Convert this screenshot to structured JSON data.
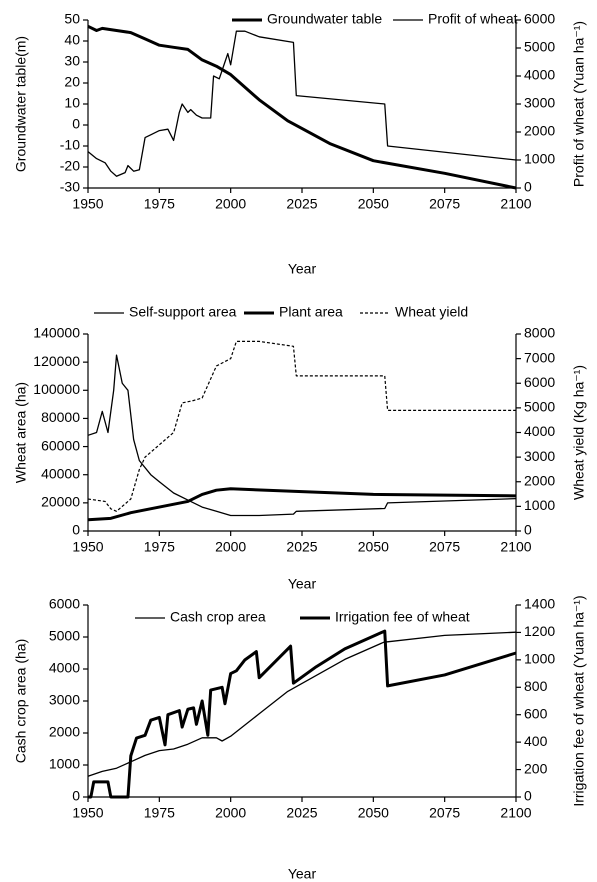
{
  "chart_data": [
    {
      "type": "line",
      "x_label": "Year",
      "y_label": "Groundwater table(m)",
      "y2_label": "Profit of wheat (Yuan ha⁻¹)",
      "legend": "top",
      "xlim": [
        1950,
        2100
      ],
      "xticks": [
        1950,
        1975,
        2000,
        2025,
        2050,
        2075,
        2100
      ],
      "ylim": [
        -30,
        50
      ],
      "yticks": [
        -30,
        -20,
        -10,
        0,
        10,
        20,
        30,
        40,
        50
      ],
      "y2lim": [
        0,
        6000
      ],
      "y2ticks": [
        0,
        1000,
        2000,
        3000,
        4000,
        5000,
        6000
      ],
      "series": [
        {
          "name": "Groundwater table",
          "color": "#000000",
          "linewidth": 3,
          "axis": "y",
          "x": [
            1950,
            1953,
            1955,
            1960,
            1965,
            1970,
            1975,
            1980,
            1985,
            1990,
            1995,
            2000,
            2010,
            2020,
            2035,
            2050,
            2075,
            2100
          ],
          "values": [
            47,
            45,
            46,
            45,
            44,
            41,
            38,
            37,
            36,
            31,
            28,
            24,
            12,
            2,
            -9,
            -17,
            -23,
            -30
          ]
        },
        {
          "name": "Profit of wheat",
          "color": "#000000",
          "linewidth": 1.3,
          "axis": "y2",
          "x": [
            1950,
            1953,
            1956,
            1958,
            1960,
            1963,
            1964,
            1966,
            1968,
            1970,
            1972,
            1975,
            1978,
            1980,
            1982,
            1983,
            1985,
            1986,
            1988,
            1990,
            1993,
            1994,
            1996,
            1998,
            1999,
            2000,
            2002,
            2005,
            2010,
            2022,
            2023,
            2054,
            2055,
            2100
          ],
          "values": [
            1300,
            1050,
            900,
            600,
            420,
            550,
            800,
            600,
            650,
            1800,
            1900,
            2050,
            2100,
            1700,
            2700,
            3000,
            2700,
            2800,
            2600,
            2500,
            2500,
            4000,
            3900,
            4500,
            4800,
            4400,
            5600,
            5600,
            5400,
            5200,
            3300,
            3000,
            1500,
            1000
          ]
        }
      ]
    },
    {
      "type": "line",
      "x_label": "Year",
      "y_label": "Wheat area (ha)",
      "y2_label": "Wheat yield (Kg ha⁻¹)",
      "legend": "above",
      "xlim": [
        1950,
        2100
      ],
      "xticks": [
        1950,
        1975,
        2000,
        2025,
        2050,
        2075,
        2100
      ],
      "ylim": [
        0,
        140000
      ],
      "yticks": [
        0,
        20000,
        40000,
        60000,
        80000,
        100000,
        120000,
        140000
      ],
      "y2lim": [
        0,
        8000
      ],
      "y2ticks": [
        0,
        1000,
        2000,
        3000,
        4000,
        5000,
        6000,
        7000,
        8000
      ],
      "series": [
        {
          "name": "Self-support area",
          "color": "#000000",
          "linewidth": 1.3,
          "axis": "y",
          "x": [
            1950,
            1953,
            1955,
            1957,
            1959,
            1960,
            1962,
            1964,
            1966,
            1968,
            1972,
            1975,
            1980,
            1985,
            1990,
            1995,
            2000,
            2010,
            2022,
            2023,
            2054,
            2055,
            2100
          ],
          "values": [
            68000,
            70000,
            85000,
            70000,
            100000,
            125000,
            105000,
            100000,
            65000,
            50000,
            40000,
            35000,
            27000,
            22000,
            17000,
            14000,
            11000,
            11000,
            12000,
            14000,
            16000,
            20000,
            23000
          ]
        },
        {
          "name": "Plant area",
          "color": "#000000",
          "linewidth": 3,
          "axis": "y",
          "x": [
            1950,
            1958,
            1965,
            1975,
            1985,
            1990,
            1995,
            2000,
            2025,
            2050,
            2100
          ],
          "values": [
            8000,
            9000,
            13000,
            17000,
            21000,
            26000,
            29000,
            30000,
            28000,
            26000,
            25000
          ]
        },
        {
          "name": "Wheat yield",
          "color": "#000000",
          "linewidth": 1.2,
          "dashed": true,
          "axis": "y2",
          "x": [
            1950,
            1956,
            1958,
            1960,
            1965,
            1968,
            1970,
            1975,
            1980,
            1983,
            1987,
            1990,
            1995,
            2000,
            2002,
            2010,
            2022,
            2023,
            2054,
            2055,
            2100
          ],
          "values": [
            1300,
            1200,
            900,
            800,
            1300,
            2500,
            3000,
            3500,
            4000,
            5200,
            5300,
            5400,
            6700,
            7000,
            7700,
            7700,
            7500,
            6300,
            6300,
            4900,
            4900
          ]
        }
      ]
    },
    {
      "type": "line",
      "x_label": "Year",
      "y_label": "Cash crop area (ha)",
      "y2_label": "Irrigation fee of wheat (Yuan ha⁻¹)",
      "legend": "top",
      "xlim": [
        1950,
        2100
      ],
      "xticks": [
        1950,
        1975,
        2000,
        2025,
        2050,
        2075,
        2100
      ],
      "ylim": [
        0,
        6000
      ],
      "yticks": [
        0,
        1000,
        2000,
        3000,
        4000,
        5000,
        6000
      ],
      "y2lim": [
        0,
        1400
      ],
      "y2ticks": [
        0,
        200,
        400,
        600,
        800,
        1000,
        1200,
        1400
      ],
      "series": [
        {
          "name": "Cash crop area",
          "color": "#000000",
          "linewidth": 1.3,
          "axis": "y",
          "x": [
            1950,
            1955,
            1960,
            1965,
            1970,
            1975,
            1980,
            1985,
            1990,
            1995,
            1997,
            2000,
            2010,
            2020,
            2030,
            2040,
            2054,
            2055,
            2075,
            2100
          ],
          "values": [
            650,
            800,
            900,
            1100,
            1300,
            1450,
            1500,
            1650,
            1850,
            1850,
            1750,
            1900,
            2600,
            3300,
            3800,
            4300,
            4850,
            4850,
            5050,
            5150
          ]
        },
        {
          "name": "Irrigation fee of wheat",
          "color": "#000000",
          "linewidth": 3,
          "axis": "y2",
          "x": [
            1950,
            1951,
            1952,
            1957,
            1958,
            1964,
            1965,
            1967,
            1970,
            1972,
            1975,
            1977,
            1978,
            1982,
            1983,
            1985,
            1987,
            1988,
            1990,
            1992,
            1993,
            1997,
            1998,
            2000,
            2002,
            2005,
            2009,
            2010,
            2021,
            2022,
            2030,
            2040,
            2054,
            2055,
            2075,
            2100
          ],
          "values": [
            0,
            0,
            110,
            110,
            0,
            0,
            300,
            430,
            450,
            560,
            580,
            380,
            600,
            630,
            510,
            640,
            650,
            530,
            700,
            450,
            780,
            800,
            680,
            900,
            920,
            1000,
            1060,
            870,
            1100,
            830,
            950,
            1080,
            1210,
            810,
            890,
            1050
          ]
        }
      ]
    }
  ]
}
